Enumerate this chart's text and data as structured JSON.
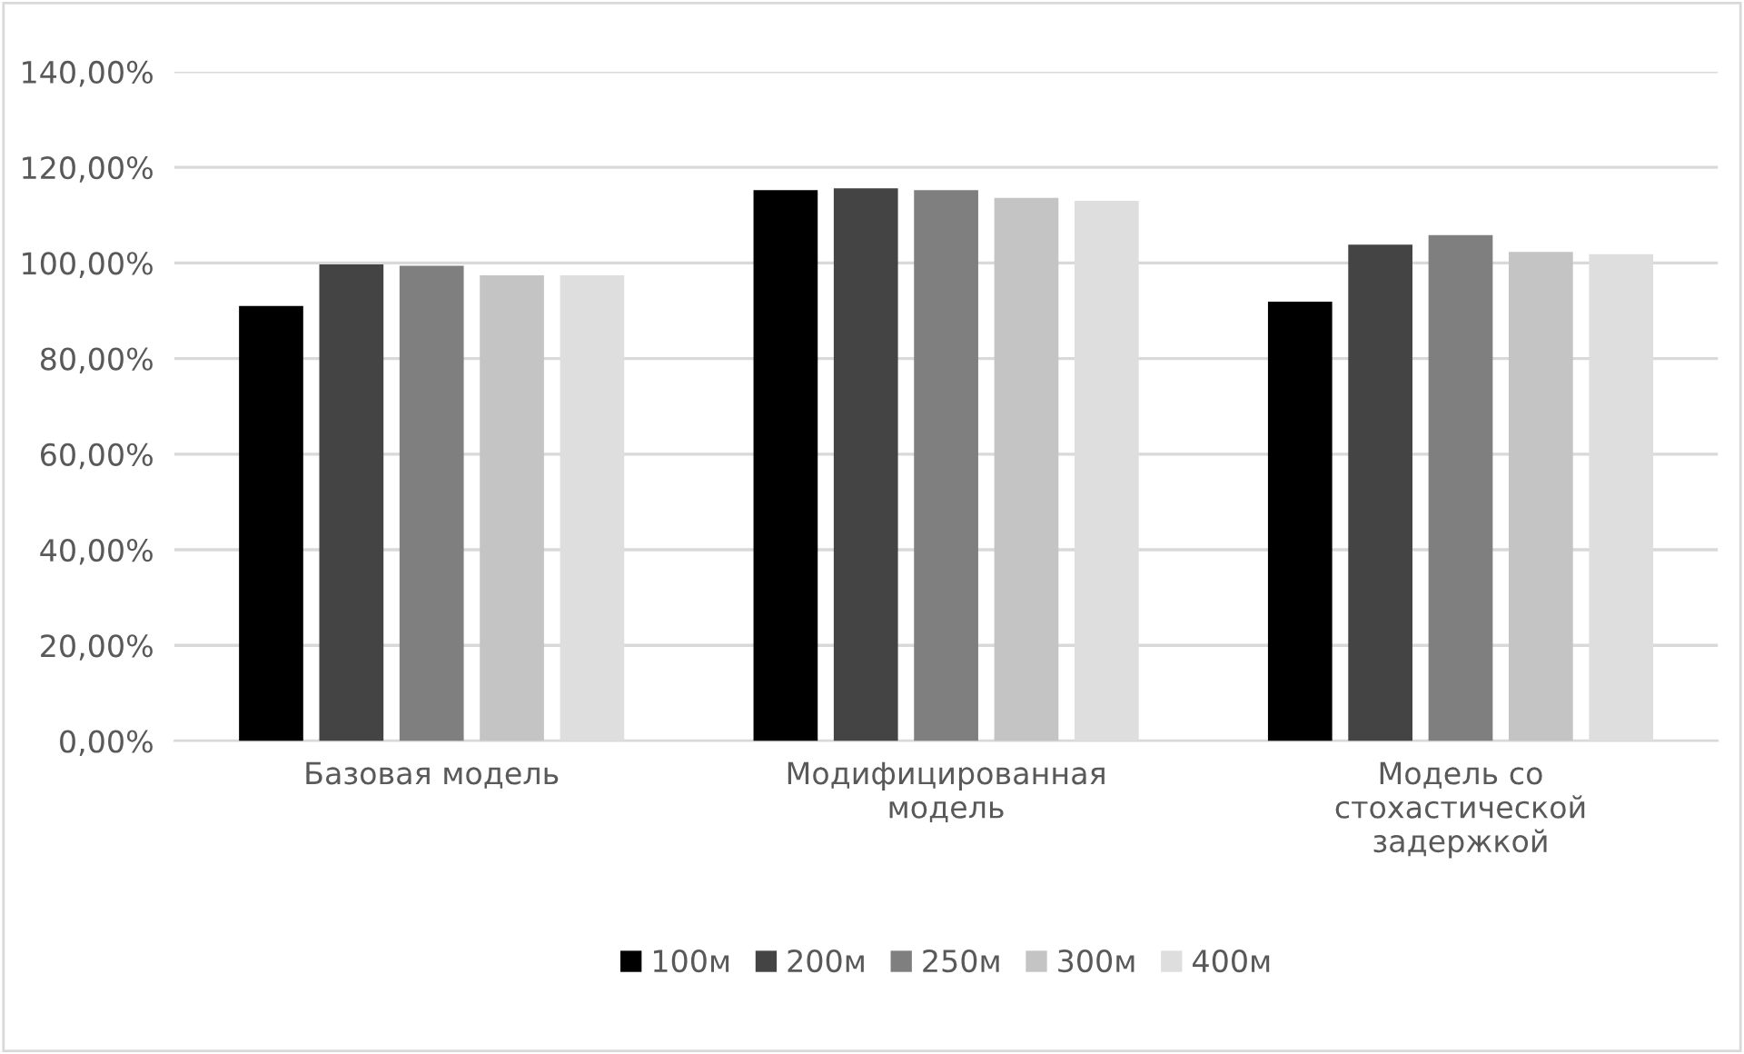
{
  "chart_data": {
    "type": "bar",
    "categories": [
      "Базовая модель",
      "Модифицированная\nмодель",
      "Модель со\nстохастической\nзадержкой"
    ],
    "series": [
      {
        "name": "100м",
        "color": "#000000",
        "values": [
          91.0,
          115.2,
          91.9
        ]
      },
      {
        "name": "200м",
        "color": "#444444",
        "values": [
          99.7,
          115.6,
          103.8
        ]
      },
      {
        "name": "250м",
        "color": "#7f7f7f",
        "values": [
          99.4,
          115.2,
          105.8
        ]
      },
      {
        "name": "300м",
        "color": "#c4c4c4",
        "values": [
          97.4,
          113.6,
          102.3
        ]
      },
      {
        "name": "400м",
        "color": "#dedede",
        "values": [
          97.4,
          113.0,
          101.8
        ]
      }
    ],
    "ylim": [
      0,
      140
    ],
    "yticks": [
      {
        "value": 0,
        "label": "0,00%"
      },
      {
        "value": 20,
        "label": "20,00%"
      },
      {
        "value": 40,
        "label": "40,00%"
      },
      {
        "value": 60,
        "label": "60,00%"
      },
      {
        "value": 80,
        "label": "80,00%"
      },
      {
        "value": 100,
        "label": "100,00%"
      },
      {
        "value": 120,
        "label": "120,00%"
      },
      {
        "value": 140,
        "label": "140,00%"
      }
    ],
    "grid": "y",
    "legend": "bottom"
  }
}
